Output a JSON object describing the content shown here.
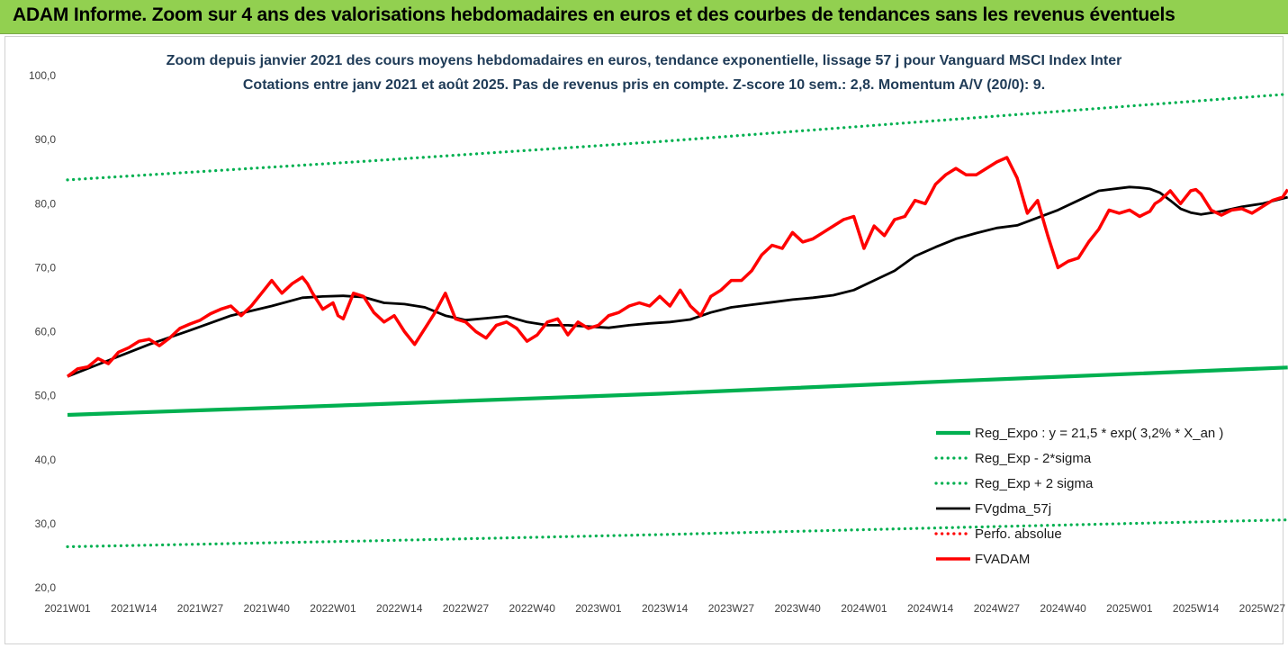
{
  "banner": {
    "title": "ADAM Informe. Zoom sur 4 ans des valorisations hebdomadaires en euros et des courbes de tendances sans les revenus éventuels"
  },
  "colors": {
    "banner_bg": "#92d050",
    "subtitle_text": "#1f3b57",
    "reg_expo": "#00b050",
    "fvadam": "#ff0000",
    "fvgdma": "#000000",
    "perfo": "#ff0000"
  },
  "chart_data": {
    "type": "line",
    "title": "Zoom depuis janvier 2021 des cours moyens hebdomadaires en euros, tendance exponentielle, lissage 57 j pour Vanguard MSCI Index Inter",
    "subtitle": "Cotations entre janv 2021 et août 2025.  Pas de revenus pris en compte. Z-score 10 sem.: 2,8. Momentum A/V (20/0): 9.",
    "xlabel": "",
    "ylabel": "",
    "ylim": [
      20,
      100
    ],
    "yticks": [
      "20,0",
      "30,0",
      "40,0",
      "50,0",
      "60,0",
      "70,0",
      "80,0",
      "90,0",
      "100,0"
    ],
    "x_range": [
      0,
      232
    ],
    "xticks": [
      {
        "i": 0,
        "label": "2021W01"
      },
      {
        "i": 13,
        "label": "2021W14"
      },
      {
        "i": 26,
        "label": "2021W27"
      },
      {
        "i": 39,
        "label": "2021W40"
      },
      {
        "i": 52,
        "label": "2022W01"
      },
      {
        "i": 65,
        "label": "2022W14"
      },
      {
        "i": 78,
        "label": "2022W27"
      },
      {
        "i": 91,
        "label": "2022W40"
      },
      {
        "i": 104,
        "label": "2023W01"
      },
      {
        "i": 117,
        "label": "2023W14"
      },
      {
        "i": 130,
        "label": "2023W27"
      },
      {
        "i": 143,
        "label": "2023W40"
      },
      {
        "i": 156,
        "label": "2024W01"
      },
      {
        "i": 169,
        "label": "2024W14"
      },
      {
        "i": 182,
        "label": "2024W27"
      },
      {
        "i": 195,
        "label": "2024W40"
      },
      {
        "i": 208,
        "label": "2025W01"
      },
      {
        "i": 221,
        "label": "2025W14"
      },
      {
        "i": 234,
        "label": "2025W27"
      }
    ],
    "grid": false,
    "legend_position": "bottom-right",
    "series": [
      {
        "name": "Reg_Expo : y = 21,5 * exp( 3,2% *  X_an )",
        "style": "solid",
        "color": "#00b050",
        "x": [
          0,
          58,
          116,
          174,
          239
        ],
        "y": [
          47.0,
          48.6,
          50.3,
          52.3,
          54.4
        ]
      },
      {
        "name": "Reg_Exp - 2*sigma",
        "style": "dotted",
        "color": "#00b050",
        "x": [
          0,
          58,
          116,
          174,
          239
        ],
        "y": [
          26.4,
          27.3,
          28.3,
          29.4,
          30.6
        ]
      },
      {
        "name": "Reg_Exp + 2 sigma",
        "style": "dotted",
        "color": "#00b050",
        "x": [
          0,
          58,
          116,
          174,
          239
        ],
        "y": [
          83.7,
          86.6,
          89.7,
          93.2,
          97.1
        ]
      },
      {
        "name": "FVgdma_57j",
        "style": "solid",
        "color": "#000000",
        "x": [
          0,
          8,
          16,
          24,
          32,
          40,
          46,
          50,
          54,
          58,
          62,
          66,
          70,
          74,
          78,
          82,
          86,
          90,
          94,
          98,
          102,
          106,
          110,
          114,
          118,
          122,
          126,
          130,
          134,
          138,
          142,
          146,
          150,
          154,
          158,
          162,
          166,
          170,
          174,
          178,
          182,
          186,
          190,
          194,
          198,
          202,
          206,
          208,
          210,
          212,
          214,
          216,
          218,
          220,
          222,
          226,
          230,
          234,
          239
        ],
        "y": [
          53.0,
          55.5,
          58.0,
          60.2,
          62.5,
          64.0,
          65.3,
          65.5,
          65.6,
          65.4,
          64.5,
          64.3,
          63.8,
          62.5,
          61.8,
          62.1,
          62.4,
          61.5,
          61.0,
          61.0,
          60.8,
          60.6,
          61.0,
          61.3,
          61.5,
          61.9,
          63.0,
          63.8,
          64.2,
          64.6,
          65.0,
          65.3,
          65.7,
          66.5,
          68.0,
          69.5,
          71.8,
          73.2,
          74.5,
          75.4,
          76.2,
          76.6,
          77.8,
          79.0,
          80.5,
          82.0,
          82.4,
          82.6,
          82.5,
          82.3,
          81.7,
          80.5,
          79.2,
          78.6,
          78.3,
          78.8,
          79.5,
          80.0,
          81.0
        ]
      },
      {
        "name": "Perfo. absolue",
        "style": "dotted",
        "color": "#ff0000",
        "x": [],
        "y": []
      },
      {
        "name": "FVADAM",
        "style": "solid",
        "color": "#ff0000",
        "x": [
          0,
          2,
          4,
          6,
          8,
          10,
          12,
          14,
          16,
          18,
          20,
          22,
          24,
          26,
          28,
          30,
          32,
          34,
          36,
          38,
          40,
          42,
          44,
          46,
          47,
          48,
          50,
          52,
          53,
          54,
          56,
          58,
          60,
          62,
          64,
          66,
          68,
          70,
          72,
          74,
          76,
          78,
          80,
          82,
          84,
          86,
          88,
          90,
          92,
          94,
          96,
          98,
          100,
          102,
          104,
          106,
          108,
          110,
          112,
          114,
          116,
          118,
          120,
          122,
          124,
          126,
          128,
          130,
          132,
          134,
          136,
          138,
          140,
          142,
          144,
          146,
          148,
          150,
          152,
          154,
          156,
          158,
          160,
          162,
          164,
          166,
          168,
          170,
          172,
          174,
          176,
          178,
          180,
          182,
          184,
          186,
          188,
          190,
          192,
          194,
          196,
          198,
          200,
          202,
          204,
          206,
          208,
          210,
          212,
          213,
          214,
          216,
          218,
          220,
          221,
          222,
          224,
          226,
          228,
          230,
          232,
          234,
          236,
          238,
          239
        ],
        "y": [
          53.0,
          54.2,
          54.5,
          55.8,
          55.0,
          56.8,
          57.5,
          58.5,
          58.8,
          57.8,
          59.0,
          60.5,
          61.2,
          61.8,
          62.8,
          63.5,
          64.0,
          62.5,
          64.0,
          66.0,
          68.0,
          66.0,
          67.5,
          68.5,
          67.5,
          66.0,
          63.5,
          64.5,
          62.5,
          62.0,
          66.0,
          65.5,
          63.0,
          61.5,
          62.5,
          60.0,
          58.0,
          60.5,
          63.0,
          66.0,
          62.0,
          61.5,
          60.0,
          59.0,
          61.0,
          61.5,
          60.5,
          58.5,
          59.5,
          61.5,
          62.0,
          59.5,
          61.5,
          60.5,
          61.0,
          62.5,
          63.0,
          64.0,
          64.5,
          64.0,
          65.5,
          64.0,
          66.5,
          64.0,
          62.5,
          65.5,
          66.5,
          68.0,
          68.0,
          69.5,
          72.0,
          73.5,
          73.0,
          75.5,
          74.0,
          74.5,
          75.5,
          76.5,
          77.5,
          78.0,
          73.0,
          76.5,
          75.0,
          77.5,
          78.0,
          80.5,
          80.0,
          83.0,
          84.5,
          85.5,
          84.5,
          84.5,
          85.5,
          86.5,
          87.2,
          84.0,
          78.5,
          80.5,
          75.0,
          70.0,
          71.0,
          71.5,
          74.0,
          76.0,
          79.0,
          78.5,
          79.0,
          78.0,
          78.8,
          80.0,
          80.5,
          82.0,
          80.0,
          82.0,
          82.2,
          81.5,
          79.0,
          78.2,
          79.0,
          79.2,
          78.5,
          79.5,
          80.5,
          81.0,
          82.2
        ]
      }
    ]
  }
}
